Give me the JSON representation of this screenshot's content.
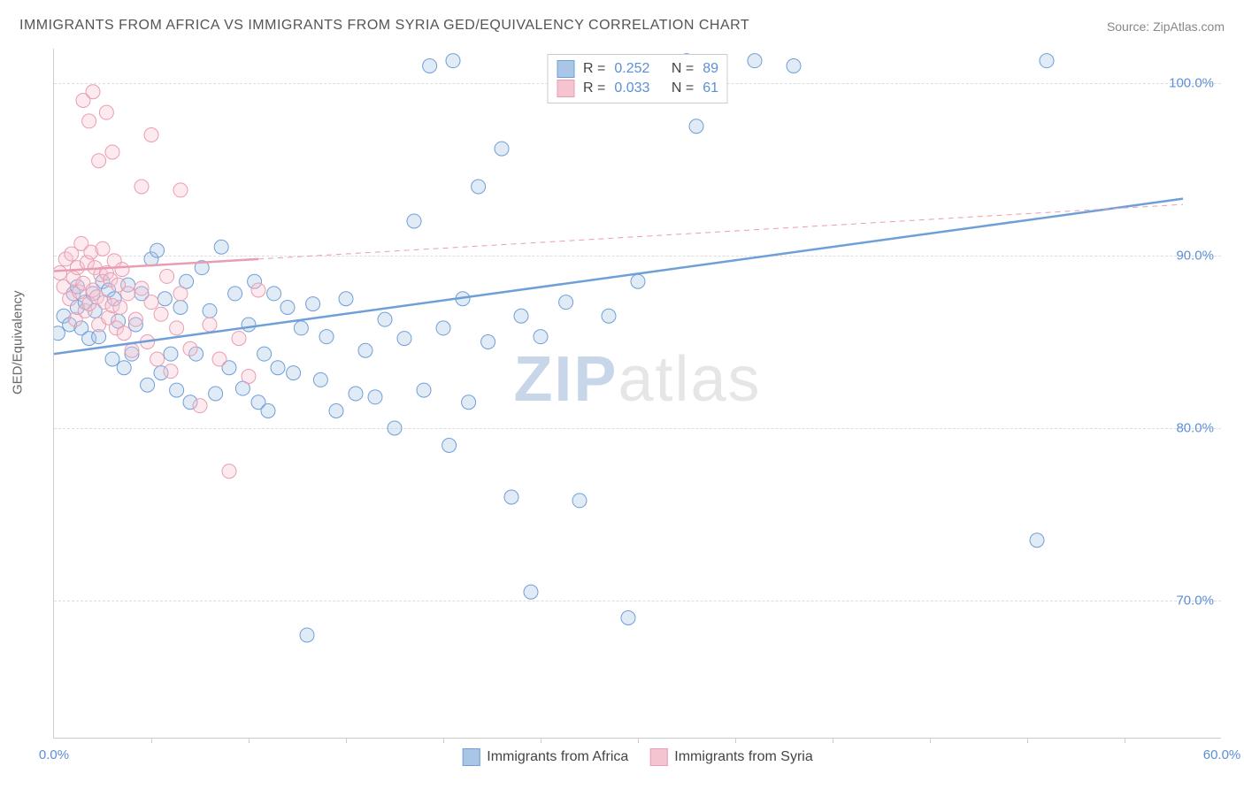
{
  "title": "IMMIGRANTS FROM AFRICA VS IMMIGRANTS FROM SYRIA GED/EQUIVALENCY CORRELATION CHART",
  "source_label": "Source:",
  "source_name": "ZipAtlas.com",
  "ylabel": "GED/Equivalency",
  "watermark_z": "ZIP",
  "watermark_rest": "atlas",
  "chart": {
    "type": "scatter",
    "background_color": "#ffffff",
    "grid_color": "#dddddd",
    "axis_color": "#cccccc",
    "text_color": "#666666",
    "value_color": "#5b8fd6",
    "xlim": [
      0,
      60
    ],
    "ylim": [
      62,
      102
    ],
    "xtick_labels": [
      "0.0%",
      "60.0%"
    ],
    "xtick_positions": [
      0,
      60
    ],
    "xtick_minor": [
      5,
      10,
      15,
      20,
      25,
      30,
      35,
      40,
      45,
      50,
      55
    ],
    "ytick_labels": [
      "70.0%",
      "80.0%",
      "90.0%",
      "100.0%"
    ],
    "ytick_positions": [
      70,
      80,
      90,
      100
    ],
    "marker_radius": 8,
    "marker_stroke_width": 1,
    "marker_fill_opacity": 0.35,
    "series": [
      {
        "name": "Immigrants from Africa",
        "legend_label": "Immigrants from Africa",
        "color": "#6f9fd8",
        "fill": "#aac6e6",
        "R": "0.252",
        "N": "89",
        "trend": {
          "x1": 0,
          "y1": 84.3,
          "x2": 58,
          "y2": 93.3,
          "stroke_width": 2.5,
          "dash": null,
          "ext_x2": 58
        },
        "points": [
          [
            0.2,
            85.5
          ],
          [
            0.5,
            86.5
          ],
          [
            0.8,
            86.0
          ],
          [
            1.0,
            87.8
          ],
          [
            1.2,
            88.2
          ],
          [
            1.2,
            87.0
          ],
          [
            1.4,
            85.8
          ],
          [
            1.6,
            87.3
          ],
          [
            1.8,
            85.2
          ],
          [
            2.0,
            87.8
          ],
          [
            2.1,
            86.8
          ],
          [
            2.3,
            85.3
          ],
          [
            2.5,
            88.5
          ],
          [
            2.8,
            88.0
          ],
          [
            3.0,
            84.0
          ],
          [
            3.1,
            87.5
          ],
          [
            3.3,
            86.2
          ],
          [
            3.6,
            83.5
          ],
          [
            3.8,
            88.3
          ],
          [
            4.0,
            84.3
          ],
          [
            4.2,
            86.0
          ],
          [
            4.5,
            87.8
          ],
          [
            4.8,
            82.5
          ],
          [
            5.0,
            89.8
          ],
          [
            5.3,
            90.3
          ],
          [
            5.5,
            83.2
          ],
          [
            5.7,
            87.5
          ],
          [
            6.0,
            84.3
          ],
          [
            6.3,
            82.2
          ],
          [
            6.5,
            87.0
          ],
          [
            6.8,
            88.5
          ],
          [
            7.0,
            81.5
          ],
          [
            7.3,
            84.3
          ],
          [
            7.6,
            89.3
          ],
          [
            8.0,
            86.8
          ],
          [
            8.3,
            82.0
          ],
          [
            8.6,
            90.5
          ],
          [
            9.0,
            83.5
          ],
          [
            9.3,
            87.8
          ],
          [
            9.7,
            82.3
          ],
          [
            10.0,
            86.0
          ],
          [
            10.3,
            88.5
          ],
          [
            10.5,
            81.5
          ],
          [
            10.8,
            84.3
          ],
          [
            11.0,
            81.0
          ],
          [
            11.3,
            87.8
          ],
          [
            11.5,
            83.5
          ],
          [
            12.0,
            87.0
          ],
          [
            12.3,
            83.2
          ],
          [
            12.7,
            85.8
          ],
          [
            13.0,
            68.0
          ],
          [
            13.3,
            87.2
          ],
          [
            13.7,
            82.8
          ],
          [
            14.0,
            85.3
          ],
          [
            14.5,
            81.0
          ],
          [
            15.0,
            87.5
          ],
          [
            15.5,
            82.0
          ],
          [
            16.0,
            84.5
          ],
          [
            16.5,
            81.8
          ],
          [
            17.0,
            86.3
          ],
          [
            17.5,
            80.0
          ],
          [
            18.0,
            85.2
          ],
          [
            18.5,
            92.0
          ],
          [
            19.0,
            82.2
          ],
          [
            19.3,
            101.0
          ],
          [
            20.0,
            85.8
          ],
          [
            20.3,
            79.0
          ],
          [
            20.5,
            101.3
          ],
          [
            21.0,
            87.5
          ],
          [
            21.3,
            81.5
          ],
          [
            21.8,
            94.0
          ],
          [
            22.3,
            85.0
          ],
          [
            23.0,
            96.2
          ],
          [
            23.5,
            76.0
          ],
          [
            24.0,
            86.5
          ],
          [
            24.5,
            70.5
          ],
          [
            25.0,
            85.3
          ],
          [
            26.3,
            87.3
          ],
          [
            27.0,
            75.8
          ],
          [
            28.0,
            101.0
          ],
          [
            28.5,
            86.5
          ],
          [
            29.5,
            69.0
          ],
          [
            30.0,
            88.5
          ],
          [
            32.5,
            101.3
          ],
          [
            33.0,
            97.5
          ],
          [
            36.0,
            101.3
          ],
          [
            38.0,
            101.0
          ],
          [
            50.5,
            73.5
          ],
          [
            51.0,
            101.3
          ]
        ]
      },
      {
        "name": "Immigrants from Syria",
        "legend_label": "Immigrants from Syria",
        "color": "#e89db1",
        "fill": "#f5c4d1",
        "R": "0.033",
        "N": "61",
        "trend": {
          "x1": 0,
          "y1": 89.1,
          "x2": 10.5,
          "y2": 89.8,
          "stroke_width": 2.5,
          "dash": null,
          "ext_x2": 58,
          "ext_dash": "6,5",
          "ext_stroke_width": 1
        },
        "points": [
          [
            0.3,
            89.0
          ],
          [
            0.5,
            88.2
          ],
          [
            0.6,
            89.8
          ],
          [
            0.8,
            87.5
          ],
          [
            0.9,
            90.1
          ],
          [
            1.0,
            88.7
          ],
          [
            1.1,
            86.3
          ],
          [
            1.2,
            89.3
          ],
          [
            1.3,
            87.9
          ],
          [
            1.4,
            90.7
          ],
          [
            1.5,
            88.4
          ],
          [
            1.6,
            86.8
          ],
          [
            1.7,
            89.6
          ],
          [
            1.8,
            87.2
          ],
          [
            1.9,
            90.2
          ],
          [
            2.0,
            88.0
          ],
          [
            2.1,
            89.3
          ],
          [
            2.2,
            87.6
          ],
          [
            2.3,
            86.0
          ],
          [
            2.4,
            88.9
          ],
          [
            2.5,
            90.4
          ],
          [
            2.6,
            87.3
          ],
          [
            2.7,
            89.0
          ],
          [
            2.8,
            86.4
          ],
          [
            2.9,
            88.6
          ],
          [
            3.0,
            87.1
          ],
          [
            3.1,
            89.7
          ],
          [
            3.2,
            85.8
          ],
          [
            3.3,
            88.3
          ],
          [
            3.4,
            87.0
          ],
          [
            3.5,
            89.2
          ],
          [
            3.6,
            85.5
          ],
          [
            3.8,
            87.8
          ],
          [
            4.0,
            84.5
          ],
          [
            4.2,
            86.3
          ],
          [
            4.5,
            88.1
          ],
          [
            4.8,
            85.0
          ],
          [
            5.0,
            87.3
          ],
          [
            5.3,
            84.0
          ],
          [
            5.5,
            86.6
          ],
          [
            5.8,
            88.8
          ],
          [
            6.0,
            83.3
          ],
          [
            6.3,
            85.8
          ],
          [
            6.5,
            87.8
          ],
          [
            7.0,
            84.6
          ],
          [
            7.5,
            81.3
          ],
          [
            8.0,
            86.0
          ],
          [
            8.5,
            84.0
          ],
          [
            9.0,
            77.5
          ],
          [
            9.5,
            85.2
          ],
          [
            10.0,
            83.0
          ],
          [
            10.5,
            88.0
          ],
          [
            1.5,
            99.0
          ],
          [
            1.8,
            97.8
          ],
          [
            2.0,
            99.5
          ],
          [
            2.3,
            95.5
          ],
          [
            2.7,
            98.3
          ],
          [
            3.0,
            96.0
          ],
          [
            4.5,
            94.0
          ],
          [
            5.0,
            97.0
          ],
          [
            6.5,
            93.8
          ]
        ]
      }
    ]
  },
  "legend_top": {
    "R_label": "R =",
    "N_label": "N ="
  }
}
